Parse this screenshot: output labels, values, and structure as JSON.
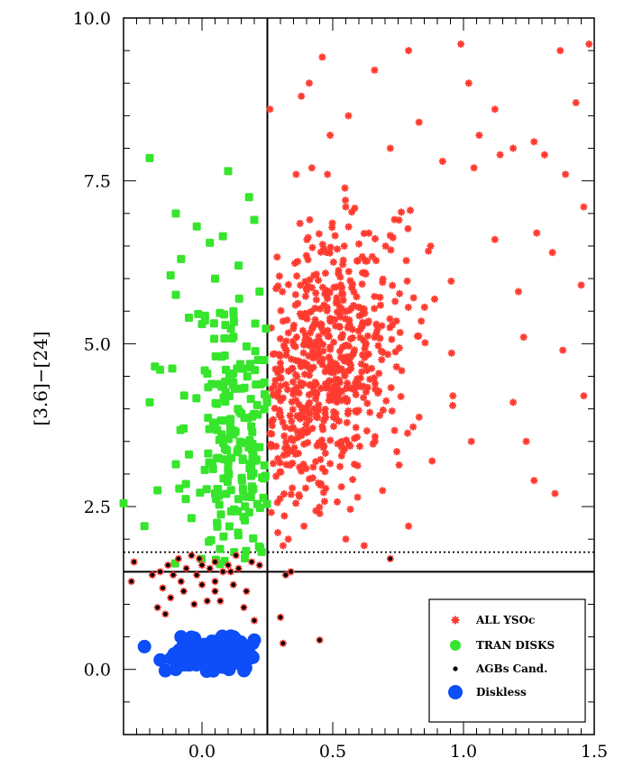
{
  "chart_data": {
    "type": "scatter",
    "xlabel": "",
    "ylabel": "[3.6]−[24]",
    "xlim": [
      -0.3,
      1.5
    ],
    "ylim": [
      -1.0,
      10.0
    ],
    "x_ticks": [
      "0.0",
      "0.5",
      "1.0",
      "1.5"
    ],
    "y_ticks": [
      "0.0",
      "2.5",
      "5.0",
      "7.5",
      "10.0"
    ],
    "x_tick_values": [
      0.0,
      0.5,
      1.0,
      1.5
    ],
    "y_tick_values": [
      0.0,
      2.5,
      5.0,
      7.5,
      10.0
    ],
    "grid": false,
    "legend_position": "bottom-right",
    "reference_lines": [
      {
        "orientation": "vertical",
        "value": 0.25,
        "style": "solid"
      },
      {
        "orientation": "horizontal",
        "value": 1.5,
        "style": "solid"
      },
      {
        "orientation": "horizontal",
        "value": 1.8,
        "style": "dotted"
      }
    ],
    "series": [
      {
        "name": "ALL YSOc",
        "color": "#ff3b30",
        "marker": "asterisk",
        "points": [
          [
            0.26,
            8.6
          ],
          [
            0.46,
            9.4
          ],
          [
            0.41,
            9.0
          ],
          [
            0.56,
            8.5
          ],
          [
            0.66,
            9.2
          ],
          [
            0.79,
            9.5
          ],
          [
            0.99,
            9.6
          ],
          [
            1.02,
            9.0
          ],
          [
            0.83,
            8.4
          ],
          [
            0.72,
            8.0
          ],
          [
            0.92,
            7.8
          ],
          [
            1.04,
            7.7
          ],
          [
            1.12,
            8.6
          ],
          [
            1.19,
            8.0
          ],
          [
            1.31,
            7.9
          ],
          [
            1.37,
            9.5
          ],
          [
            1.48,
            9.6
          ],
          [
            1.43,
            8.7
          ],
          [
            1.34,
            6.4
          ],
          [
            1.39,
            7.6
          ],
          [
            1.46,
            7.1
          ],
          [
            1.45,
            5.9
          ],
          [
            1.38,
            4.9
          ],
          [
            1.46,
            4.2
          ],
          [
            1.23,
            5.1
          ],
          [
            1.19,
            4.1
          ],
          [
            1.24,
            3.5
          ],
          [
            1.27,
            2.9
          ],
          [
            1.35,
            2.7
          ],
          [
            1.21,
            5.8
          ],
          [
            1.03,
            3.5
          ],
          [
            0.88,
            3.2
          ],
          [
            0.55,
            2.0
          ],
          [
            0.62,
            1.9
          ],
          [
            0.79,
            2.2
          ],
          [
            0.33,
            2.0
          ],
          [
            0.39,
            2.2
          ],
          [
            0.29,
            2.1
          ],
          [
            0.31,
            1.9
          ],
          [
            0.36,
            7.6
          ],
          [
            0.42,
            7.7
          ],
          [
            0.48,
            7.6
          ],
          [
            0.49,
            8.2
          ],
          [
            0.38,
            8.8
          ],
          [
            1.12,
            6.6
          ],
          [
            1.28,
            6.7
          ],
          [
            1.06,
            8.2
          ],
          [
            1.14,
            7.9
          ],
          [
            1.27,
            8.1
          ]
        ],
        "cluster": {
          "seed": 7,
          "n": 620,
          "x_mean": 0.46,
          "x_sd": 0.16,
          "y_mean": 4.55,
          "y_sd": 1.05,
          "x_min": 0.26,
          "x_max": 1.4,
          "y_min": 2.3,
          "y_max": 7.4,
          "trend": 2.2
        }
      },
      {
        "name": "TRAN DISKS",
        "color": "#36e52c",
        "marker": "square",
        "points": [
          [
            -0.2,
            7.85
          ],
          [
            0.1,
            7.65
          ],
          [
            0.18,
            7.25
          ],
          [
            -0.1,
            7.0
          ],
          [
            0.2,
            6.9
          ],
          [
            -0.02,
            6.8
          ],
          [
            0.08,
            6.65
          ],
          [
            0.03,
            6.55
          ],
          [
            -0.08,
            6.3
          ],
          [
            0.14,
            6.2
          ],
          [
            -0.12,
            6.05
          ],
          [
            0.05,
            6.0
          ],
          [
            -0.1,
            5.75
          ],
          [
            0.12,
            5.5
          ],
          [
            -0.05,
            5.4
          ],
          [
            0.0,
            5.3
          ],
          [
            -0.18,
            4.65
          ],
          [
            -0.16,
            4.6
          ],
          [
            -0.2,
            4.1
          ],
          [
            -0.07,
            3.7
          ],
          [
            -0.1,
            3.15
          ],
          [
            -0.05,
            3.3
          ],
          [
            -0.17,
            2.75
          ],
          [
            -0.22,
            2.2
          ],
          [
            -0.3,
            2.55
          ],
          [
            0.22,
            5.8
          ]
        ],
        "cluster": {
          "seed": 11,
          "n": 200,
          "x_mean": 0.14,
          "x_sd": 0.09,
          "y_mean": 3.6,
          "y_sd": 1.15,
          "x_min": -0.2,
          "x_max": 0.25,
          "y_min": 1.6,
          "y_max": 5.7,
          "trend": 0
        }
      },
      {
        "name": "AGBs Cand.",
        "color": "#000000",
        "marker": "dot",
        "points": [
          [
            -0.34,
            0.85
          ],
          [
            -0.27,
            1.35
          ],
          [
            -0.26,
            1.65
          ],
          [
            -0.19,
            1.45
          ],
          [
            -0.15,
            1.25
          ],
          [
            -0.17,
            0.95
          ],
          [
            -0.14,
            0.85
          ],
          [
            -0.12,
            1.1
          ],
          [
            -0.08,
            1.35
          ],
          [
            -0.06,
            1.55
          ],
          [
            -0.02,
            1.45
          ],
          [
            0.0,
            1.3
          ],
          [
            0.02,
            1.05
          ],
          [
            0.05,
            1.2
          ],
          [
            0.08,
            1.5
          ],
          [
            0.11,
            1.5
          ],
          [
            0.17,
            1.2
          ],
          [
            0.16,
            0.95
          ],
          [
            0.2,
            0.75
          ],
          [
            0.3,
            0.8
          ],
          [
            0.31,
            0.4
          ],
          [
            0.32,
            1.45
          ],
          [
            0.34,
            1.5
          ],
          [
            0.45,
            0.45
          ],
          [
            0.72,
            1.7
          ],
          [
            0.19,
            1.65
          ],
          [
            0.22,
            1.6
          ],
          [
            -0.09,
            1.7
          ],
          [
            -0.04,
            1.75
          ],
          [
            0.13,
            1.75
          ],
          [
            -0.13,
            1.6
          ],
          [
            0.05,
            1.65
          ],
          [
            -0.01,
            1.7
          ],
          [
            0.1,
            1.6
          ],
          [
            -0.11,
            1.45
          ],
          [
            0.03,
            1.55
          ],
          [
            -0.07,
            1.2
          ],
          [
            0.07,
            1.05
          ],
          [
            0.14,
            1.55
          ],
          [
            -0.16,
            1.5
          ],
          [
            0.0,
            1.6
          ],
          [
            0.12,
            1.3
          ],
          [
            -0.03,
            1.0
          ],
          [
            0.05,
            1.35
          ]
        ]
      },
      {
        "name": "Diskless",
        "color": "#0d4ef8",
        "marker": "circle",
        "points": [
          [
            -0.22,
            0.35
          ],
          [
            -0.14,
            -0.02
          ],
          [
            0.2,
            0.45
          ],
          [
            0.19,
            0.2
          ],
          [
            0.12,
            0.5
          ],
          [
            -0.08,
            0.5
          ]
        ],
        "cluster": {
          "seed": 23,
          "n": 120,
          "x_mean": 0.03,
          "x_sd": 0.09,
          "y_mean": 0.22,
          "y_sd": 0.14,
          "x_min": -0.16,
          "x_max": 0.21,
          "y_min": -0.05,
          "y_max": 0.52,
          "trend": 0
        }
      }
    ]
  }
}
